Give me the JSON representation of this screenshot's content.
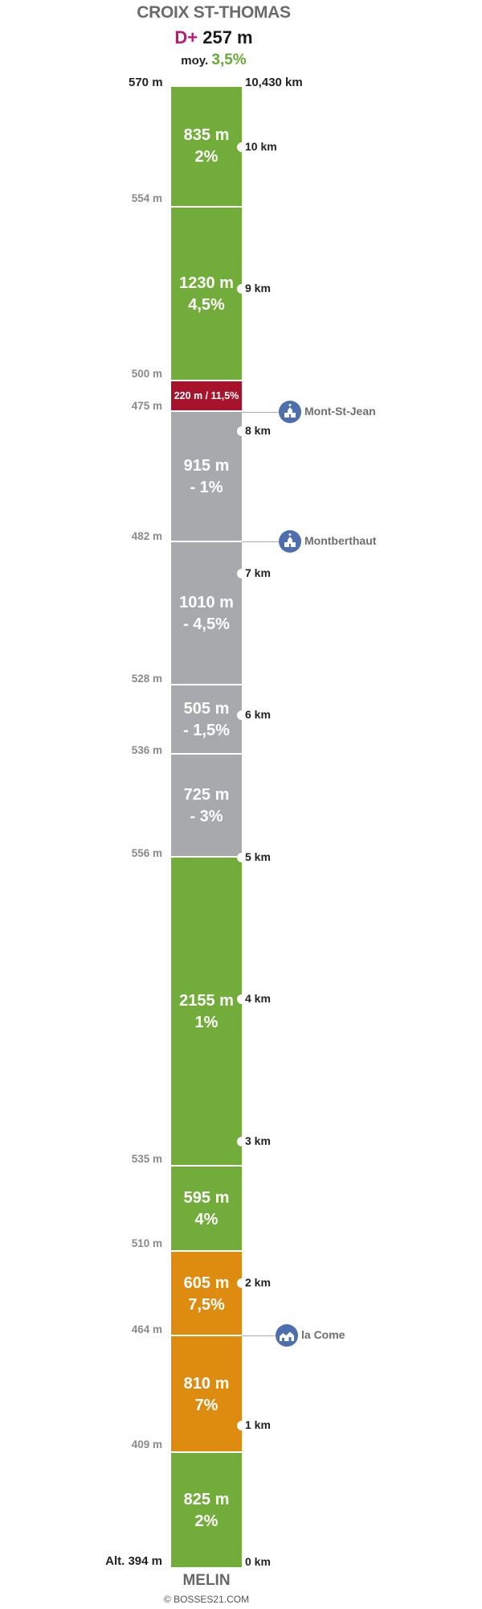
{
  "title": "CROIX ST-THOMAS",
  "summary": {
    "dplus_label": "D+",
    "dplus_value": "257 m",
    "moy_label": "moy.",
    "moy_value": "3,5%"
  },
  "header": {
    "left": "570 m",
    "right": "10,430 km"
  },
  "colors": {
    "green": "#72ac3a",
    "gray": "#a8a9ad",
    "orange": "#de8c10",
    "red": "#a6132a",
    "poi": "#4d6fae"
  },
  "segments": [
    {
      "name": "seg-1",
      "length": "835 m",
      "grade": "2%",
      "color": "green"
    },
    {
      "name": "seg-2",
      "length": "1230 m",
      "grade": "4,5%",
      "color": "green"
    },
    {
      "name": "seg-3",
      "label": "220 m / 11,5%",
      "color": "red"
    },
    {
      "name": "seg-4",
      "length": "915 m",
      "grade": "- 1%",
      "color": "gray"
    },
    {
      "name": "seg-5",
      "length": "1010 m",
      "grade": "- 4,5%",
      "color": "gray"
    },
    {
      "name": "seg-6",
      "length": "505 m",
      "grade": "- 1,5%",
      "color": "gray"
    },
    {
      "name": "seg-7",
      "length": "725 m",
      "grade": "- 3%",
      "color": "gray"
    },
    {
      "name": "seg-8",
      "length": "2155 m",
      "grade": "1%",
      "color": "green"
    },
    {
      "name": "seg-9",
      "length": "595 m",
      "grade": "4%",
      "color": "green"
    },
    {
      "name": "seg-10",
      "length": "605 m",
      "grade": "7,5%",
      "color": "orange"
    },
    {
      "name": "seg-11",
      "length": "810 m",
      "grade": "7%",
      "color": "orange"
    },
    {
      "name": "seg-12",
      "length": "825 m",
      "grade": "2%",
      "color": "green"
    }
  ],
  "altitudes": [
    "554 m",
    "500 m",
    "475 m",
    "482 m",
    "528 m",
    "536 m",
    "556 m",
    "535 m",
    "510 m",
    "464 m",
    "409 m",
    "Alt. 394 m"
  ],
  "km_markers": [
    "10 km",
    "9 km",
    "8 km",
    "7 km",
    "6 km",
    "5 km",
    "4 km",
    "3 km",
    "2 km",
    "1 km",
    "0 km"
  ],
  "pois": [
    {
      "name": "Mont-St-Jean",
      "icon": "church-icon"
    },
    {
      "name": "Montberthaut",
      "icon": "church-icon"
    },
    {
      "name": "la Come",
      "icon": "houses-icon"
    }
  ],
  "bottom_name": "MELIN",
  "credit": "© BOSSES21.COM"
}
